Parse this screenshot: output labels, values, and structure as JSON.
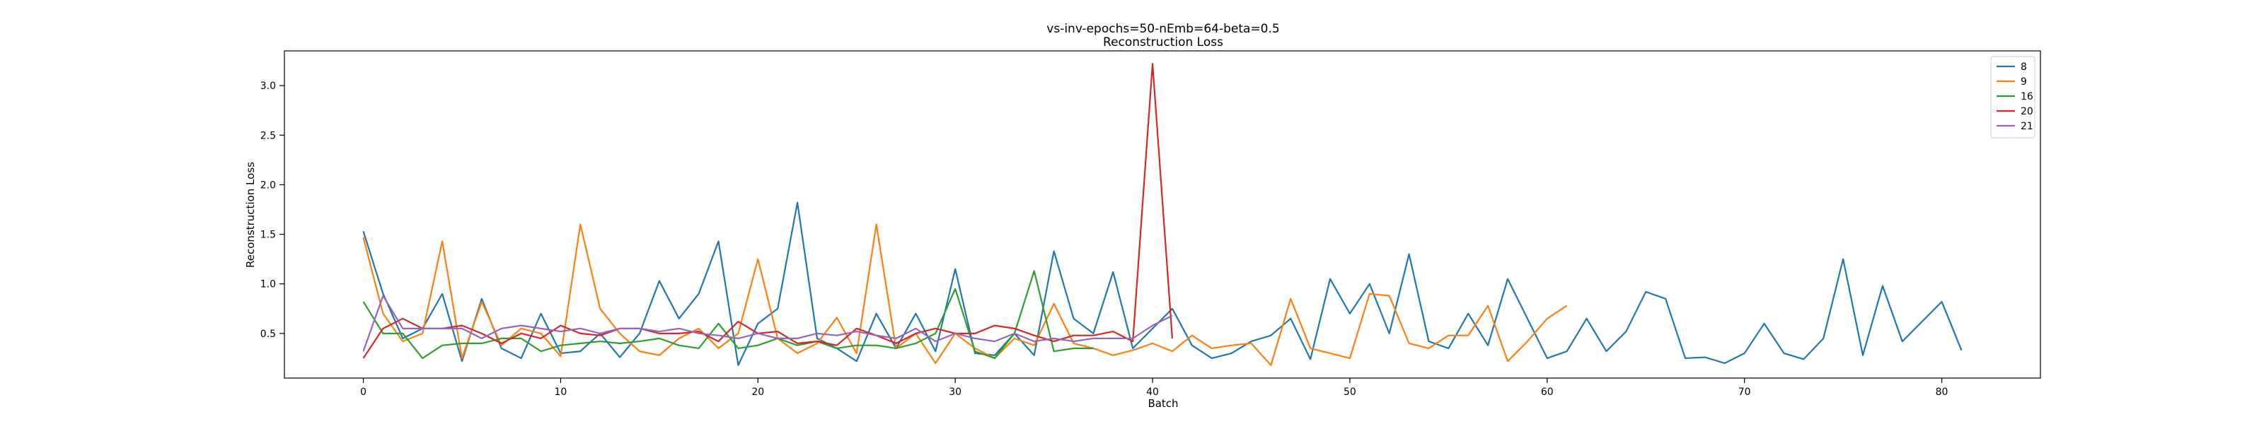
{
  "chart_data": {
    "type": "line",
    "title": "vs-inv-epochs=50-nEmb=64-beta=0.5",
    "subtitle": "Reconstruction Loss",
    "xlabel": "Batch",
    "ylabel": "Reconstruction Loss",
    "xlim": [
      -4,
      85
    ],
    "ylim": [
      0.05,
      3.35
    ],
    "xticks": [
      0,
      10,
      20,
      30,
      40,
      50,
      60,
      70,
      80
    ],
    "yticks": [
      0.5,
      1.0,
      1.5,
      2.0,
      2.5,
      3.0
    ],
    "ytick_labels": [
      "0.5",
      "1.0",
      "1.5",
      "2.0",
      "2.5",
      "3.0"
    ],
    "grid": false,
    "legend_position": "top-right",
    "series": [
      {
        "name": "8",
        "color": "#1f77b4",
        "values": [
          1.53,
          0.9,
          0.45,
          0.55,
          0.9,
          0.22,
          0.85,
          0.35,
          0.25,
          0.7,
          0.3,
          0.32,
          0.5,
          0.26,
          0.5,
          1.03,
          0.65,
          0.9,
          1.43,
          0.18,
          0.6,
          0.75,
          1.82,
          0.45,
          0.35,
          0.22,
          0.7,
          0.35,
          0.7,
          0.32,
          1.15,
          0.3,
          0.28,
          0.5,
          0.28,
          1.33,
          0.65,
          0.5,
          1.12,
          0.35,
          0.55,
          0.75,
          0.38,
          0.25,
          0.3,
          0.42,
          0.48,
          0.65,
          0.24,
          1.05,
          0.7,
          1.0,
          0.5,
          1.3,
          0.42,
          0.35,
          0.7,
          0.38,
          1.05,
          0.65,
          0.25,
          0.32,
          0.65,
          0.32,
          0.52,
          0.92,
          0.85,
          0.25,
          0.26,
          0.2,
          0.3,
          0.6,
          0.3,
          0.24,
          0.45,
          1.25,
          0.28,
          0.98,
          0.42,
          0.62,
          0.82,
          0.33
        ]
      },
      {
        "name": "9",
        "color": "#ff7f0e",
        "values": [
          1.47,
          0.7,
          0.42,
          0.5,
          1.43,
          0.25,
          0.82,
          0.38,
          0.55,
          0.5,
          0.27,
          1.6,
          0.75,
          0.5,
          0.32,
          0.28,
          0.45,
          0.55,
          0.35,
          0.5,
          1.25,
          0.45,
          0.3,
          0.4,
          0.66,
          0.3,
          1.6,
          0.35,
          0.5,
          0.2,
          0.5,
          0.35,
          0.25,
          0.45,
          0.38,
          0.8,
          0.4,
          0.35,
          0.28,
          0.33,
          0.4,
          0.32,
          0.48,
          0.35,
          0.38,
          0.4,
          0.18,
          0.85,
          0.35,
          0.3,
          0.25,
          0.9,
          0.88,
          0.4,
          0.35,
          0.48,
          0.48,
          0.78,
          0.22,
          0.42,
          0.65,
          0.78
        ]
      },
      {
        "name": "16",
        "color": "#2ca02c",
        "values": [
          0.82,
          0.5,
          0.5,
          0.25,
          0.38,
          0.4,
          0.4,
          0.45,
          0.45,
          0.32,
          0.38,
          0.4,
          0.42,
          0.4,
          0.42,
          0.45,
          0.38,
          0.35,
          0.6,
          0.35,
          0.38,
          0.45,
          0.38,
          0.42,
          0.35,
          0.38,
          0.38,
          0.35,
          0.4,
          0.5,
          0.95,
          0.32,
          0.25,
          0.5,
          1.13,
          0.32,
          0.35,
          0.35
        ]
      },
      {
        "name": "20",
        "color": "#d62728",
        "values": [
          0.25,
          0.55,
          0.65,
          0.55,
          0.55,
          0.58,
          0.5,
          0.4,
          0.5,
          0.45,
          0.58,
          0.5,
          0.48,
          0.55,
          0.55,
          0.5,
          0.5,
          0.52,
          0.42,
          0.62,
          0.5,
          0.52,
          0.4,
          0.42,
          0.38,
          0.55,
          0.48,
          0.4,
          0.5,
          0.55,
          0.5,
          0.5,
          0.58,
          0.55,
          0.48,
          0.42,
          0.48,
          0.48,
          0.52,
          0.42,
          3.22,
          0.45
        ]
      },
      {
        "name": "21",
        "color": "#9467bd",
        "values": [
          0.32,
          0.88,
          0.55,
          0.55,
          0.55,
          0.55,
          0.45,
          0.55,
          0.58,
          0.55,
          0.52,
          0.55,
          0.5,
          0.55,
          0.55,
          0.52,
          0.55,
          0.5,
          0.48,
          0.45,
          0.5,
          0.45,
          0.45,
          0.5,
          0.48,
          0.52,
          0.48,
          0.45,
          0.55,
          0.42,
          0.5,
          0.45,
          0.42,
          0.5,
          0.42,
          0.45,
          0.42,
          0.45,
          0.45,
          0.45,
          0.58,
          0.68
        ]
      }
    ]
  }
}
